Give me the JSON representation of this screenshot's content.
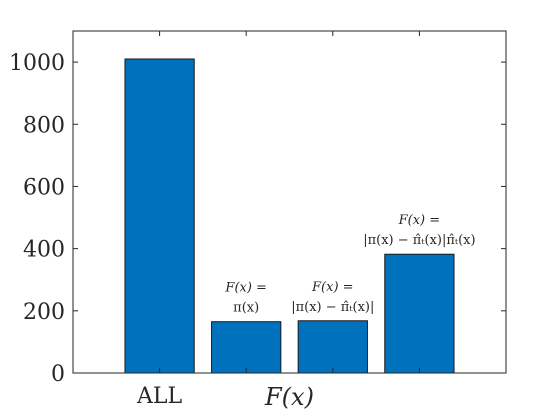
{
  "chart_data": {
    "type": "bar",
    "categories": [
      "ALL",
      "",
      "",
      ""
    ],
    "values": [
      1010,
      165,
      168,
      382
    ],
    "annotations": [
      null,
      [
        "F(x) =",
        "π(x)"
      ],
      [
        "F(x) =",
        "|π(x) − π̂ₜ(x)|"
      ],
      [
        "F(x) =",
        "|π(x) − π̂ₜ(x)|π̂ₜ(x)"
      ]
    ],
    "xlabel": "F(x)",
    "ylabel": "",
    "title": "",
    "ylim": [
      0,
      1100
    ],
    "yticks": [
      0,
      200,
      400,
      600,
      800,
      1000
    ],
    "grid": false,
    "bar_color": "#0072bd"
  }
}
